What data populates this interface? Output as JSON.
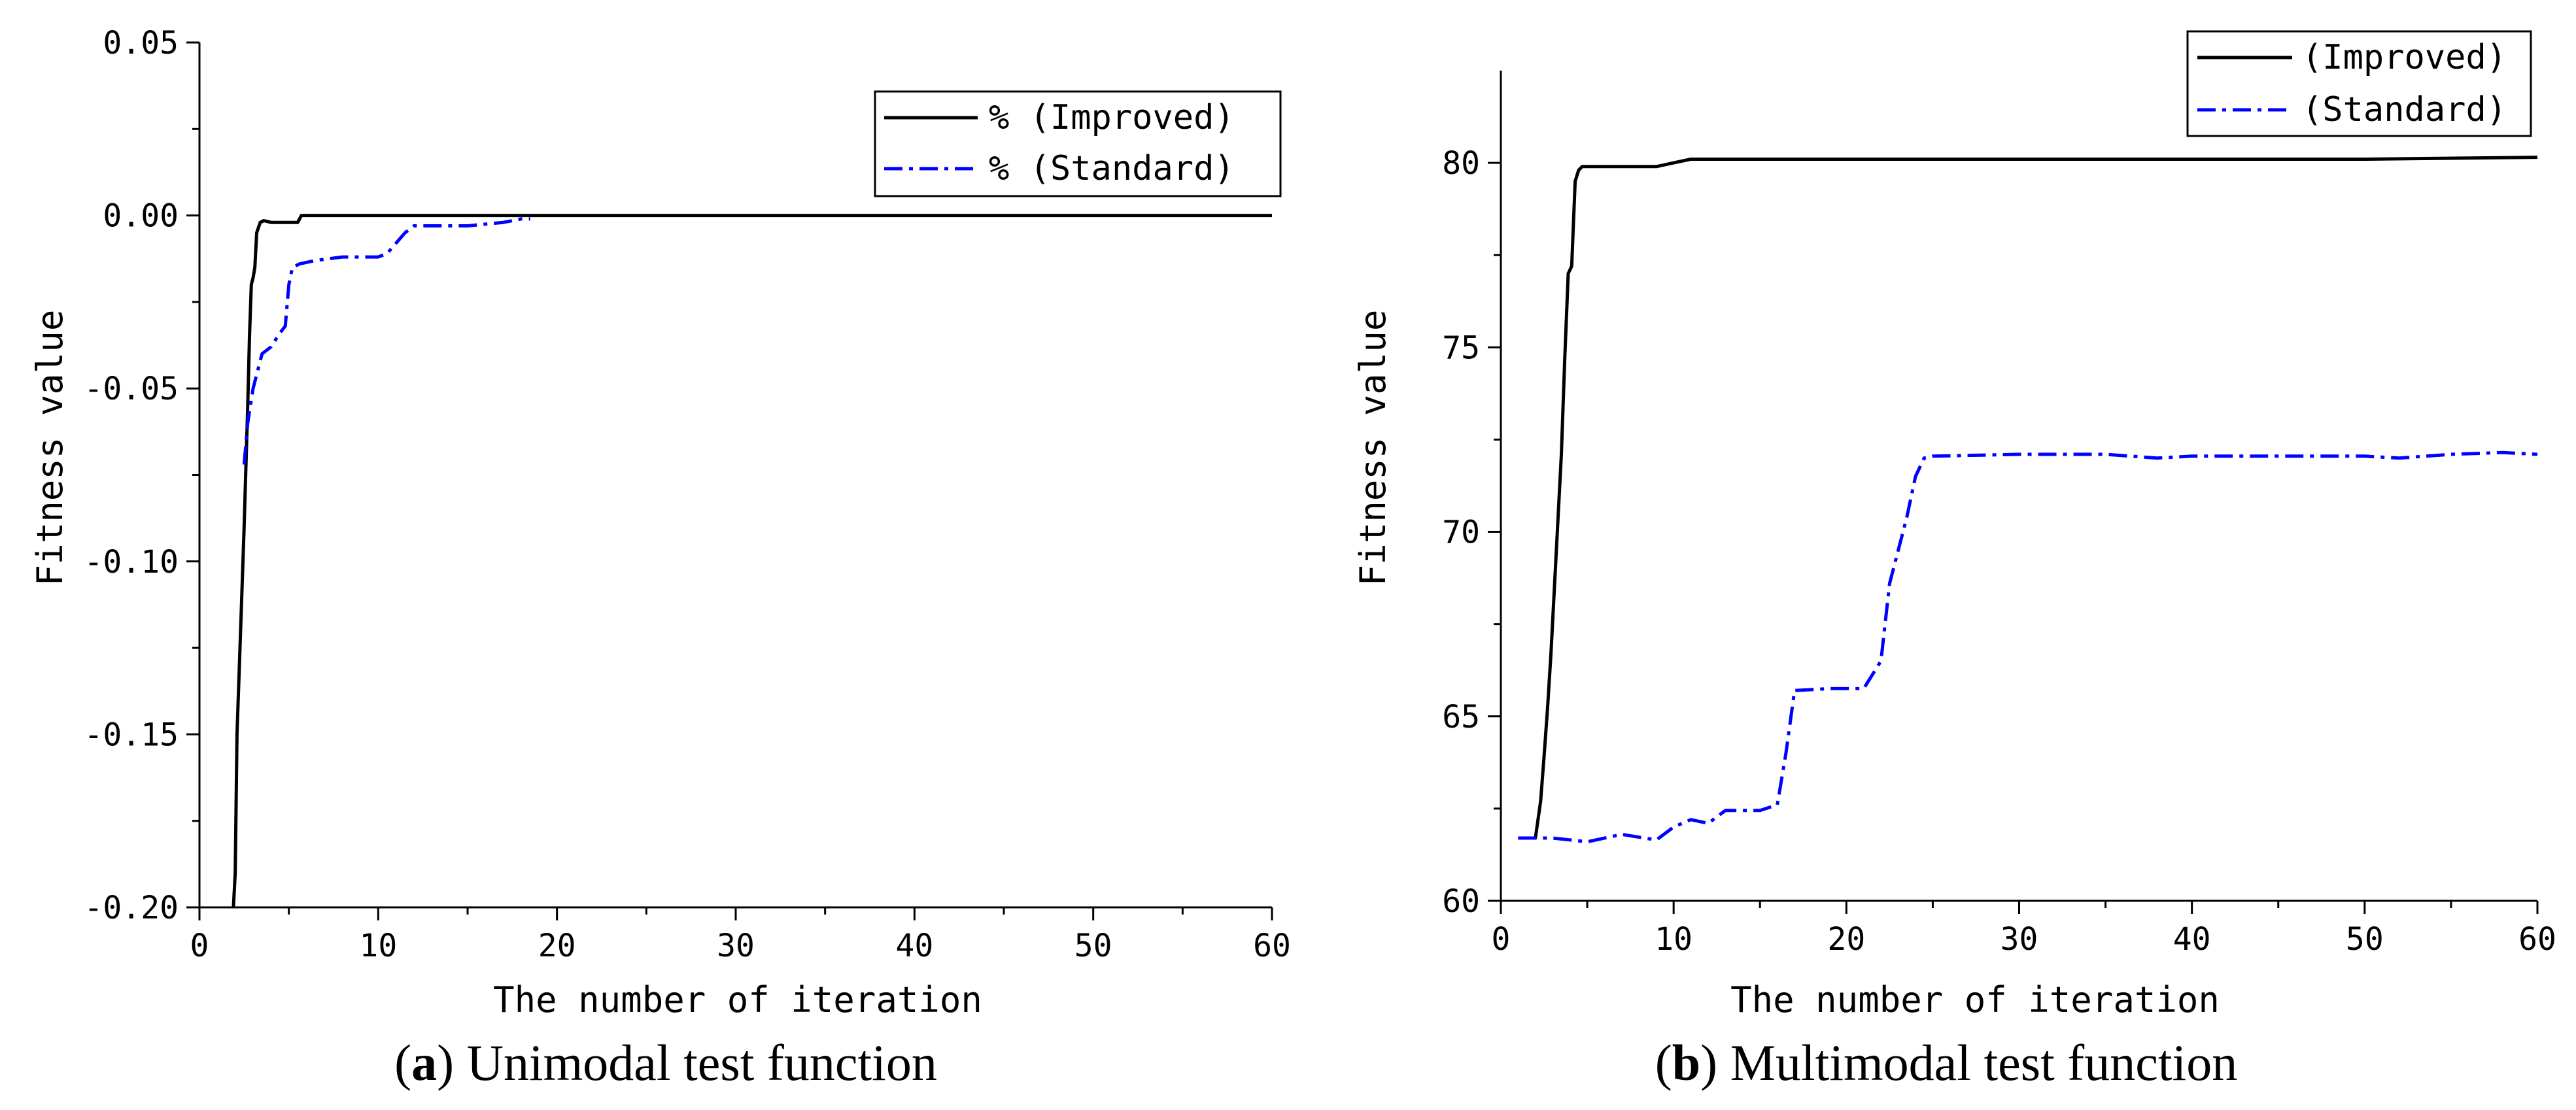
{
  "chart_data": [
    {
      "type": "line",
      "caption_letter": "a",
      "caption_text": "Unimodal test function",
      "xlabel": "The number of iteration",
      "ylabel": "Fitness value",
      "xlim": [
        0,
        60
      ],
      "ylim": [
        -0.2,
        0.05
      ],
      "xticks": [
        0,
        10,
        20,
        30,
        40,
        50,
        60
      ],
      "xtick_labels": [
        "0",
        "10",
        "20",
        "30",
        "40",
        "50",
        "60"
      ],
      "yticks": [
        -0.2,
        -0.15,
        -0.1,
        -0.05,
        0.0,
        0.05
      ],
      "ytick_labels": [
        "-0.20",
        "-0.15",
        "-0.10",
        "-0.05",
        "0.00",
        "0.05"
      ],
      "legend_position": "top-right",
      "series": [
        {
          "name": "% (Improved)",
          "color": "#000000",
          "style": "solid",
          "x": [
            1.9,
            2.0,
            2.1,
            2.3,
            2.5,
            2.7,
            2.8,
            2.9,
            3.0,
            3.1,
            3.2,
            3.4,
            3.6,
            4.0,
            5.0,
            5.5,
            5.7,
            6.0,
            7.0,
            8.0,
            9.0,
            10,
            15,
            20,
            30,
            40,
            50,
            60
          ],
          "y": [
            -0.2,
            -0.19,
            -0.15,
            -0.12,
            -0.09,
            -0.055,
            -0.035,
            -0.02,
            -0.018,
            -0.015,
            -0.005,
            -0.002,
            -0.0015,
            -0.002,
            -0.002,
            -0.002,
            0.0,
            0.0,
            0.0,
            0.0,
            0.0,
            0.0,
            0.0,
            0.0,
            0.0,
            0.0,
            0.0,
            0.0
          ]
        },
        {
          "name": "% (Standard)",
          "color": "#0000ff",
          "style": "dashdot",
          "x": [
            2.5,
            2.7,
            3.0,
            3.5,
            4.0,
            4.5,
            4.8,
            5.0,
            5.2,
            5.6,
            6.5,
            8.0,
            10.0,
            10.5,
            11.0,
            11.5,
            12.0,
            13.0,
            14.0,
            15.0,
            17.0,
            18.0,
            18.5
          ],
          "y": [
            -0.072,
            -0.06,
            -0.05,
            -0.04,
            -0.038,
            -0.034,
            -0.032,
            -0.02,
            -0.015,
            -0.014,
            -0.013,
            -0.012,
            -0.012,
            -0.011,
            -0.008,
            -0.005,
            -0.003,
            -0.003,
            -0.003,
            -0.003,
            -0.002,
            -0.001,
            -0.001
          ]
        }
      ]
    },
    {
      "type": "line",
      "caption_letter": "b",
      "caption_text": "Multimodal test function",
      "xlabel": "The number of iteration",
      "ylabel": "Fitness value",
      "xlim": [
        0,
        60
      ],
      "ylim": [
        60,
        82.5
      ],
      "xticks": [
        0,
        10,
        20,
        30,
        40,
        50,
        60
      ],
      "xtick_labels": [
        "0",
        "10",
        "20",
        "30",
        "40",
        "50",
        "60"
      ],
      "yticks": [
        60,
        65,
        70,
        75,
        80
      ],
      "ytick_labels": [
        "60",
        "65",
        "70",
        "75",
        "80"
      ],
      "legend_position": "top-right",
      "series": [
        {
          "name": "(Improved)",
          "color": "#000000",
          "style": "solid",
          "x": [
            1,
            2,
            2.3,
            2.5,
            2.7,
            2.9,
            3.1,
            3.3,
            3.5,
            3.7,
            3.9,
            4.1,
            4.3,
            4.5,
            4.7,
            4.9,
            5.1,
            5.3,
            5.6,
            6.0,
            7.0,
            8.0,
            9.0,
            10.0,
            11.0,
            15,
            20,
            30,
            40,
            50,
            60
          ],
          "y": [
            61.7,
            61.7,
            62.7,
            63.9,
            65.2,
            66.7,
            68.5,
            70.3,
            72.1,
            74.7,
            77.0,
            77.2,
            79.5,
            79.8,
            79.9,
            79.9,
            79.9,
            79.9,
            79.9,
            79.9,
            79.9,
            79.9,
            79.9,
            80.0,
            80.1,
            80.1,
            80.1,
            80.1,
            80.1,
            80.1,
            80.15
          ]
        },
        {
          "name": "(Standard)",
          "color": "#0000ff",
          "style": "dashdot",
          "x": [
            1,
            3,
            5,
            7,
            9,
            10,
            11,
            12,
            13,
            15,
            16,
            16.5,
            17,
            19,
            21,
            22,
            22.5,
            23,
            23.5,
            24,
            24.5,
            25,
            30,
            35,
            38,
            40,
            45,
            50,
            52,
            55,
            58,
            60
          ],
          "y": [
            61.7,
            61.7,
            61.6,
            61.8,
            61.65,
            62.0,
            62.2,
            62.1,
            62.45,
            62.45,
            62.6,
            64.0,
            65.7,
            65.75,
            65.75,
            66.5,
            68.6,
            69.5,
            70.4,
            71.5,
            72.0,
            72.05,
            72.1,
            72.1,
            72.0,
            72.05,
            72.05,
            72.05,
            72.0,
            72.1,
            72.15,
            72.1
          ]
        }
      ]
    }
  ]
}
